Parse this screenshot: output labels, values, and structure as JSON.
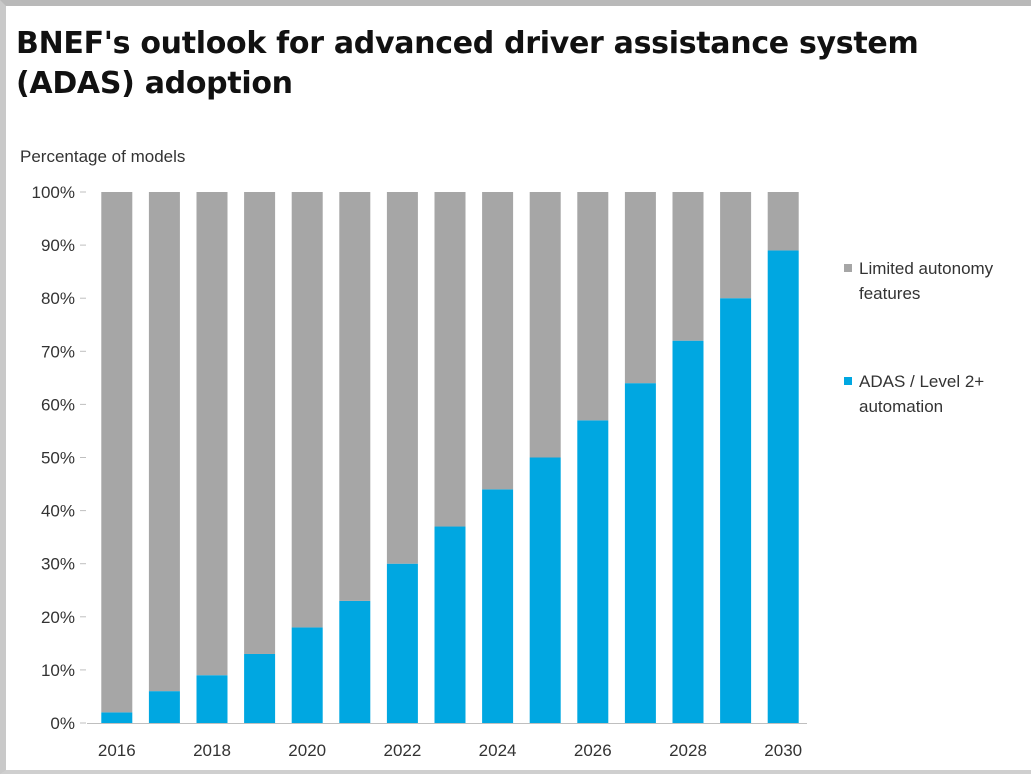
{
  "chart_data": {
    "type": "bar",
    "stacked": true,
    "title": "BNEF's outlook for advanced driver assistance system (ADAS) adoption",
    "subtitle": "Percentage of models",
    "categories": [
      "2016",
      "2017",
      "2018",
      "2019",
      "2020",
      "2021",
      "2022",
      "2023",
      "2024",
      "2025",
      "2026",
      "2027",
      "2028",
      "2029",
      "2030"
    ],
    "x_tick_labels": [
      "2016",
      "",
      "2018",
      "",
      "2020",
      "",
      "2022",
      "",
      "2024",
      "",
      "2026",
      "",
      "2028",
      "",
      "2030"
    ],
    "series": [
      {
        "name": "ADAS / Level 2+ automation",
        "color": "#00a7e1",
        "values": [
          2,
          6,
          9,
          13,
          18,
          23,
          30,
          37,
          44,
          50,
          57,
          64,
          72,
          80,
          89
        ]
      },
      {
        "name": "Limited autonomy features",
        "color": "#a6a6a6",
        "values": [
          98,
          94,
          91,
          87,
          82,
          77,
          70,
          63,
          56,
          50,
          43,
          36,
          28,
          20,
          11
        ]
      }
    ],
    "legend_order": [
      "Limited autonomy features",
      "ADAS / Level 2+ automation"
    ],
    "legend_lines": [
      [
        "Limited autonomy",
        "features"
      ],
      [
        "ADAS / Level 2+",
        "automation"
      ]
    ],
    "y_tick_labels": [
      "0%",
      "10%",
      "20%",
      "30%",
      "40%",
      "50%",
      "60%",
      "70%",
      "80%",
      "90%",
      "100%"
    ],
    "ylim": [
      0,
      100
    ],
    "legend_position": "right",
    "grid": false
  }
}
